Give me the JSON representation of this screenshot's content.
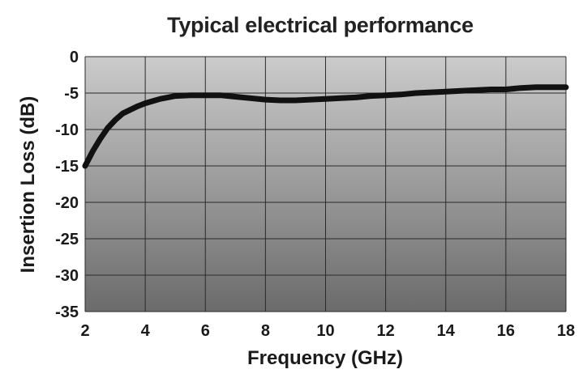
{
  "chart_data": {
    "type": "line",
    "title": "Typical electrical performance",
    "xlabel": "Frequency (GHz)",
    "ylabel": "Insertion Loss (dB)",
    "xlim": [
      2,
      18
    ],
    "ylim": [
      -35,
      0
    ],
    "xticks": [
      "2",
      "4",
      "6",
      "8",
      "10",
      "12",
      "14",
      "16",
      "18"
    ],
    "yticks": [
      "0",
      "-5",
      "-10",
      "-15",
      "-20",
      "-25",
      "-30",
      "-35"
    ],
    "grid": true,
    "legend": "none",
    "series": [
      {
        "color": "#111111",
        "x": [
          2.0,
          2.25,
          2.5,
          2.75,
          3.0,
          3.25,
          3.5,
          3.75,
          4.0,
          4.25,
          4.5,
          4.75,
          5.0,
          5.5,
          6.0,
          6.5,
          7.0,
          7.5,
          8.0,
          8.5,
          9.0,
          9.5,
          10.0,
          10.5,
          11.0,
          11.5,
          12.0,
          12.5,
          13.0,
          13.5,
          14.0,
          14.5,
          15.0,
          15.5,
          16.0,
          16.5,
          17.0,
          17.5,
          18.0
        ],
        "y": [
          -15.0,
          -13.0,
          -11.3,
          -9.8,
          -8.7,
          -7.8,
          -7.3,
          -6.8,
          -6.4,
          -6.1,
          -5.8,
          -5.6,
          -5.4,
          -5.3,
          -5.3,
          -5.3,
          -5.5,
          -5.7,
          -5.9,
          -6.0,
          -6.0,
          -5.9,
          -5.8,
          -5.7,
          -5.6,
          -5.4,
          -5.3,
          -5.2,
          -5.0,
          -4.9,
          -4.8,
          -4.7,
          -4.6,
          -4.5,
          -4.5,
          -4.3,
          -4.2,
          -4.2,
          -4.2
        ]
      }
    ]
  }
}
